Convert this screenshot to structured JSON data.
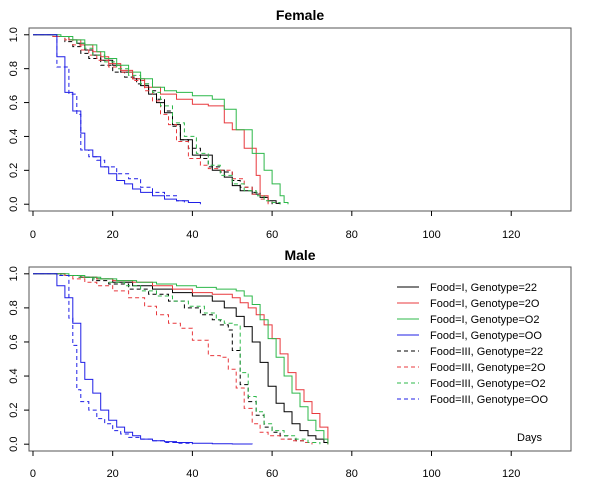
{
  "chart_data": [
    {
      "type": "line",
      "title": "Female",
      "xlim": [
        -1,
        135
      ],
      "ylim": [
        -0.04,
        1.04
      ],
      "xticks": [
        0,
        20,
        40,
        60,
        80,
        100,
        120
      ],
      "yticks": [
        0.0,
        0.2,
        0.4,
        0.6,
        0.8,
        1.0
      ],
      "xtick_labels": [
        "0",
        "20",
        "40",
        "60",
        "80",
        "100",
        "120"
      ],
      "ytick_labels": [
        "0.0",
        "0.2",
        "0.4",
        "0.6",
        "0.8",
        "1.0"
      ],
      "step": true,
      "series": [
        {
          "name": "Food=I, Genotype=22",
          "color": "#000000",
          "dash": "solid",
          "x": [
            0,
            6,
            9,
            11,
            13,
            15,
            17,
            20,
            22,
            25,
            27,
            29,
            31,
            33,
            35,
            37,
            40,
            42,
            45,
            48,
            50,
            52,
            55,
            57,
            59,
            61,
            62
          ],
          "y": [
            1.0,
            0.99,
            0.97,
            0.95,
            0.91,
            0.88,
            0.85,
            0.82,
            0.78,
            0.74,
            0.7,
            0.65,
            0.6,
            0.54,
            0.47,
            0.38,
            0.29,
            0.29,
            0.2,
            0.16,
            0.11,
            0.08,
            0.06,
            0.04,
            0.02,
            0.005,
            0.0
          ]
        },
        {
          "name": "Food=I, Genotype=2O",
          "color": "#e8383d",
          "dash": "solid",
          "x": [
            0,
            6,
            9,
            12,
            15,
            17,
            19,
            22,
            25,
            28,
            32,
            36,
            40,
            44,
            48,
            50,
            53,
            56,
            57,
            59
          ],
          "y": [
            1.0,
            0.99,
            0.97,
            0.94,
            0.9,
            0.87,
            0.83,
            0.79,
            0.74,
            0.69,
            0.65,
            0.62,
            0.59,
            0.58,
            0.48,
            0.44,
            0.33,
            0.17,
            0.05,
            0.0
          ]
        },
        {
          "name": "Food=I, Genotype=O2",
          "color": "#2db84a",
          "dash": "solid",
          "x": [
            0,
            7,
            10,
            13,
            16,
            18,
            21,
            24,
            27,
            30,
            33,
            36,
            40,
            45,
            48,
            51,
            55,
            58,
            60,
            62,
            63,
            64
          ],
          "y": [
            1.0,
            0.99,
            0.97,
            0.94,
            0.9,
            0.86,
            0.82,
            0.78,
            0.74,
            0.69,
            0.67,
            0.66,
            0.64,
            0.62,
            0.56,
            0.44,
            0.3,
            0.2,
            0.12,
            0.05,
            0.01,
            0.0
          ]
        },
        {
          "name": "Food=I, Genotype=OO",
          "color": "#1f1fe6",
          "dash": "solid",
          "x": [
            0,
            6,
            8,
            10,
            12,
            13,
            15,
            17,
            19,
            21,
            23,
            25,
            27,
            30,
            33,
            36,
            39,
            42
          ],
          "y": [
            1.0,
            0.87,
            0.66,
            0.55,
            0.42,
            0.32,
            0.28,
            0.22,
            0.18,
            0.14,
            0.12,
            0.09,
            0.07,
            0.05,
            0.03,
            0.02,
            0.01,
            0.0
          ]
        },
        {
          "name": "Food=III, Genotype=22",
          "color": "#000000",
          "dash": "long",
          "x": [
            0,
            5,
            8,
            10,
            12,
            14,
            17,
            20,
            23,
            26,
            29,
            31,
            33,
            35,
            37,
            39,
            42,
            44,
            47,
            50,
            52,
            55,
            57,
            59,
            60
          ],
          "y": [
            1.0,
            0.99,
            0.96,
            0.93,
            0.89,
            0.86,
            0.82,
            0.78,
            0.75,
            0.71,
            0.67,
            0.62,
            0.55,
            0.46,
            0.38,
            0.33,
            0.27,
            0.22,
            0.19,
            0.14,
            0.1,
            0.07,
            0.04,
            0.02,
            0.0
          ]
        },
        {
          "name": "Food=III, Genotype=2O",
          "color": "#e8383d",
          "dash": "long",
          "x": [
            0,
            5,
            8,
            10,
            12,
            14,
            16,
            19,
            22,
            25,
            28,
            30,
            32,
            34,
            36,
            39,
            42,
            44,
            47,
            50,
            53,
            55,
            57,
            59,
            61
          ],
          "y": [
            1.0,
            0.99,
            0.97,
            0.94,
            0.91,
            0.88,
            0.85,
            0.81,
            0.78,
            0.73,
            0.67,
            0.61,
            0.53,
            0.47,
            0.37,
            0.27,
            0.23,
            0.21,
            0.2,
            0.15,
            0.1,
            0.06,
            0.03,
            0.01,
            0.0
          ]
        },
        {
          "name": "Food=III, Genotype=O2",
          "color": "#2db84a",
          "dash": "long",
          "x": [
            0,
            6,
            9,
            11,
            13,
            15,
            18,
            21,
            24,
            27,
            30,
            32,
            35,
            38,
            41,
            44,
            47,
            50,
            53,
            56,
            58,
            60,
            62
          ],
          "y": [
            1.0,
            0.99,
            0.97,
            0.95,
            0.92,
            0.88,
            0.84,
            0.8,
            0.76,
            0.71,
            0.66,
            0.58,
            0.48,
            0.4,
            0.3,
            0.23,
            0.17,
            0.12,
            0.08,
            0.05,
            0.02,
            0.01,
            0.0
          ]
        },
        {
          "name": "Food=III, Genotype=OO",
          "color": "#1f1fe6",
          "dash": "long",
          "x": [
            0,
            6,
            9,
            11,
            12,
            14,
            16,
            18,
            21,
            24,
            27,
            30,
            33,
            36,
            38
          ],
          "y": [
            1.0,
            0.81,
            0.65,
            0.53,
            0.32,
            0.28,
            0.26,
            0.22,
            0.18,
            0.15,
            0.1,
            0.07,
            0.05,
            0.02,
            0.0
          ]
        }
      ]
    },
    {
      "type": "line",
      "title": "Male",
      "xlim": [
        -1,
        135
      ],
      "ylim": [
        -0.04,
        1.04
      ],
      "xticks": [
        0,
        20,
        40,
        60,
        80,
        100,
        120
      ],
      "yticks": [
        0.0,
        0.2,
        0.4,
        0.6,
        0.8,
        1.0
      ],
      "xtick_labels": [
        "0",
        "20",
        "40",
        "60",
        "80",
        "100",
        "120"
      ],
      "ytick_labels": [
        "0.0",
        "0.2",
        "0.4",
        "0.6",
        "0.8",
        "1.0"
      ],
      "step": true,
      "legend": "top-right",
      "annotation": "Days",
      "series": [
        {
          "name": "Food=I, Genotype=22",
          "color": "#000000",
          "dash": "solid",
          "x": [
            0,
            8,
            12,
            16,
            20,
            25,
            30,
            35,
            40,
            45,
            48,
            51,
            53,
            55,
            57,
            59,
            61,
            63,
            65,
            67,
            69,
            71,
            73,
            74
          ],
          "y": [
            1.0,
            0.99,
            0.98,
            0.97,
            0.95,
            0.93,
            0.91,
            0.89,
            0.87,
            0.84,
            0.8,
            0.75,
            0.69,
            0.6,
            0.48,
            0.34,
            0.24,
            0.19,
            0.12,
            0.08,
            0.05,
            0.03,
            0.01,
            0.0
          ]
        },
        {
          "name": "Food=I, Genotype=2O",
          "color": "#e8383d",
          "dash": "solid",
          "x": [
            0,
            8,
            12,
            16,
            20,
            25,
            30,
            35,
            40,
            45,
            50,
            52,
            54,
            56,
            58,
            60,
            62,
            64,
            66,
            68,
            70,
            72,
            74
          ],
          "y": [
            1.0,
            0.99,
            0.98,
            0.97,
            0.96,
            0.95,
            0.93,
            0.91,
            0.89,
            0.88,
            0.86,
            0.83,
            0.8,
            0.76,
            0.7,
            0.62,
            0.53,
            0.42,
            0.32,
            0.25,
            0.18,
            0.1,
            0.0
          ]
        },
        {
          "name": "Food=I, Genotype=O2",
          "color": "#2db84a",
          "dash": "solid",
          "x": [
            0,
            9,
            13,
            17,
            21,
            26,
            31,
            36,
            41,
            46,
            51,
            53,
            55,
            57,
            59,
            61,
            63,
            65,
            67,
            69,
            71,
            73,
            74
          ],
          "y": [
            1.0,
            0.99,
            0.98,
            0.97,
            0.96,
            0.95,
            0.94,
            0.93,
            0.92,
            0.91,
            0.9,
            0.87,
            0.82,
            0.73,
            0.62,
            0.51,
            0.4,
            0.3,
            0.22,
            0.14,
            0.08,
            0.03,
            0.0
          ]
        },
        {
          "name": "Food=I, Genotype=OO",
          "color": "#1f1fe6",
          "dash": "solid",
          "x": [
            0,
            6,
            8,
            10,
            12,
            13,
            15,
            17,
            19,
            21,
            23,
            25,
            27,
            30,
            33,
            36,
            40,
            45,
            50,
            55
          ],
          "y": [
            1.0,
            0.93,
            0.86,
            0.71,
            0.48,
            0.38,
            0.3,
            0.2,
            0.14,
            0.1,
            0.07,
            0.05,
            0.03,
            0.02,
            0.015,
            0.01,
            0.005,
            0.003,
            0.001,
            0.0
          ]
        },
        {
          "name": "Food=III, Genotype=22",
          "color": "#000000",
          "dash": "long",
          "x": [
            0,
            7,
            11,
            15,
            19,
            24,
            29,
            34,
            38,
            42,
            45,
            47,
            49,
            50,
            52,
            54,
            56,
            58,
            60,
            62,
            64,
            66,
            68,
            70
          ],
          "y": [
            1.0,
            0.99,
            0.98,
            0.96,
            0.94,
            0.91,
            0.88,
            0.84,
            0.8,
            0.76,
            0.73,
            0.7,
            0.67,
            0.55,
            0.35,
            0.25,
            0.17,
            0.1,
            0.07,
            0.05,
            0.03,
            0.02,
            0.01,
            0.0
          ]
        },
        {
          "name": "Food=III, Genotype=2O",
          "color": "#e8383d",
          "dash": "long",
          "x": [
            0,
            7,
            10,
            13,
            16,
            20,
            24,
            28,
            31,
            34,
            37,
            40,
            44,
            47,
            49,
            51,
            53,
            55,
            57,
            59,
            62,
            65,
            68,
            70
          ],
          "y": [
            1.0,
            0.99,
            0.97,
            0.95,
            0.93,
            0.9,
            0.86,
            0.81,
            0.76,
            0.71,
            0.68,
            0.61,
            0.52,
            0.51,
            0.44,
            0.33,
            0.21,
            0.12,
            0.07,
            0.05,
            0.03,
            0.02,
            0.01,
            0.0
          ]
        },
        {
          "name": "Food=III, Genotype=O2",
          "color": "#2db84a",
          "dash": "long",
          "x": [
            0,
            7,
            11,
            15,
            19,
            23,
            27,
            31,
            35,
            39,
            43,
            46,
            48,
            50,
            52,
            54,
            56,
            58,
            60,
            63,
            66,
            69,
            72
          ],
          "y": [
            1.0,
            0.99,
            0.98,
            0.97,
            0.95,
            0.93,
            0.9,
            0.87,
            0.84,
            0.81,
            0.77,
            0.73,
            0.71,
            0.7,
            0.42,
            0.28,
            0.19,
            0.12,
            0.08,
            0.05,
            0.03,
            0.01,
            0.0
          ]
        },
        {
          "name": "Food=III, Genotype=OO",
          "color": "#1f1fe6",
          "dash": "long",
          "x": [
            0,
            6,
            9,
            10,
            11,
            12,
            14,
            16,
            18,
            20,
            22,
            24,
            27,
            30,
            33,
            36,
            40
          ],
          "y": [
            1.0,
            0.99,
            0.74,
            0.58,
            0.32,
            0.25,
            0.2,
            0.15,
            0.12,
            0.08,
            0.06,
            0.04,
            0.03,
            0.02,
            0.01,
            0.005,
            0.0
          ]
        }
      ]
    }
  ]
}
